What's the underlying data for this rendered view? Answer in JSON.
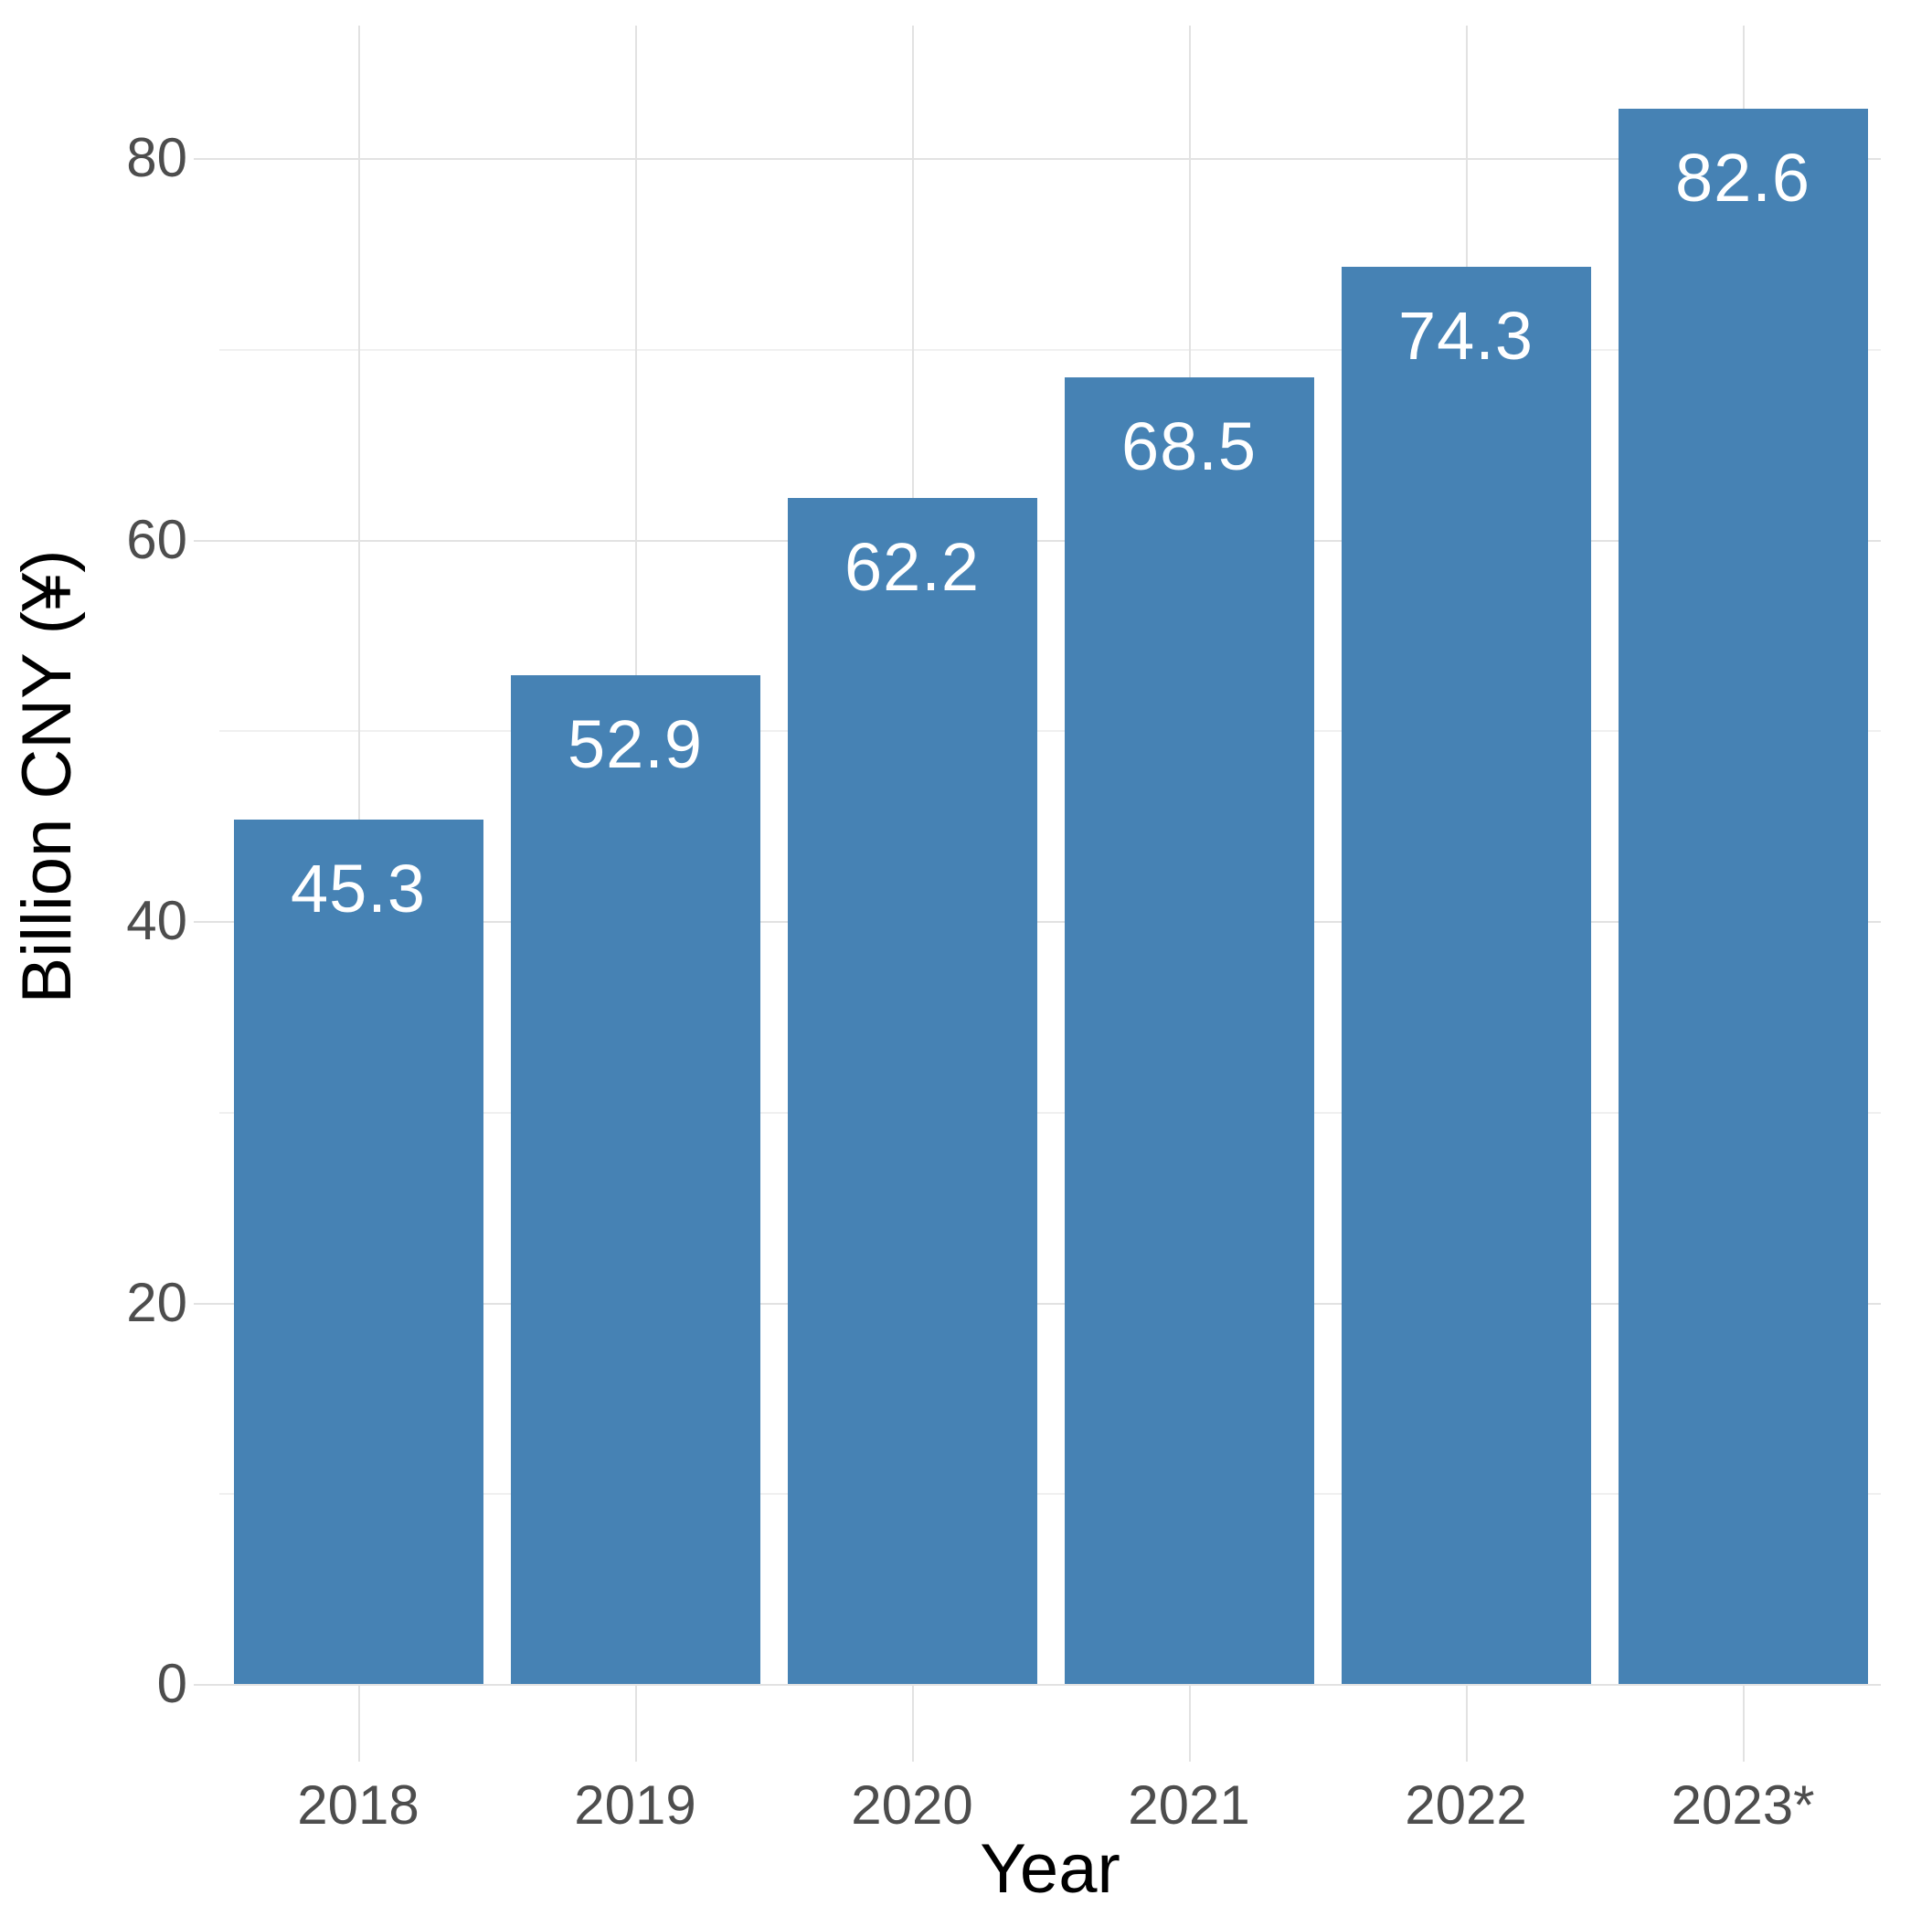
{
  "chart_data": {
    "type": "bar",
    "title": "",
    "xlabel": "Year",
    "ylabel": "Billion CNY (¥)",
    "categories": [
      "2018",
      "2019",
      "2020",
      "2021",
      "2022",
      "2023*"
    ],
    "values": [
      45.3,
      52.9,
      62.2,
      68.5,
      74.3,
      82.6
    ],
    "bar_labels": [
      "45.3",
      "52.9",
      "62.2",
      "68.5",
      "74.3",
      "82.6"
    ],
    "ylim": [
      0,
      87
    ],
    "yticks_major": [
      0,
      20,
      40,
      60,
      80
    ],
    "yticks_minor": [
      10,
      30,
      50,
      70
    ],
    "grid": "major-and-minor",
    "legend": "none",
    "colors": {
      "bar": "#4682B4",
      "bar_label": "#FFFFFF",
      "tick_label": "#4D4D4D",
      "axis_title": "#000000",
      "grid_major": "#E2E2E2",
      "grid_minor": "#F0F0F0",
      "background": "#FFFFFF"
    }
  }
}
